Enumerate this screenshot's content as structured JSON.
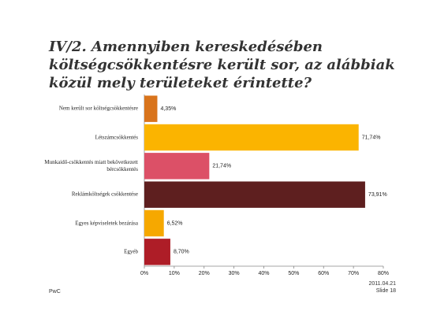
{
  "chart_data": {
    "type": "bar",
    "orientation": "horizontal",
    "title": "IV/2. Amennyiben kereskedésében költségcsökkentésre került sor, az alábbiak közül mely területeket érintette?",
    "categories": [
      "Nem került sor költségcsökkentésre",
      "Létszámcsökkentés",
      "Munkaidő-csökkentés miatt bekövetkezett bércsökkentés",
      "Reklámköltségek csökkentése",
      "Egyes képviseletek bezárása",
      "Egyéb"
    ],
    "values": [
      4.35,
      71.74,
      21.74,
      73.91,
      6.52,
      8.7
    ],
    "value_labels": [
      "4,35%",
      "71,74%",
      "21,74%",
      "73,91%",
      "6,52%",
      "8,70%"
    ],
    "colors": [
      "#d9741c",
      "#fbb400",
      "#dc5067",
      "#5e1f1f",
      "#f6a800",
      "#ae1d27"
    ],
    "xlim": [
      0,
      80
    ],
    "xticks": [
      {
        "value": 0,
        "label": "0%"
      },
      {
        "value": 10,
        "label": "10%"
      },
      {
        "value": 20,
        "label": "20%"
      },
      {
        "value": 30,
        "label": "30%"
      },
      {
        "value": 40,
        "label": "40%"
      },
      {
        "value": 50,
        "label": "50%"
      },
      {
        "value": 60,
        "label": "60%"
      },
      {
        "value": 70,
        "label": "70%"
      },
      {
        "value": 80,
        "label": "80%"
      }
    ],
    "grid": false
  },
  "footer": {
    "brand": "PwC",
    "date": "2011.04.21",
    "slide": "Slide 18"
  }
}
